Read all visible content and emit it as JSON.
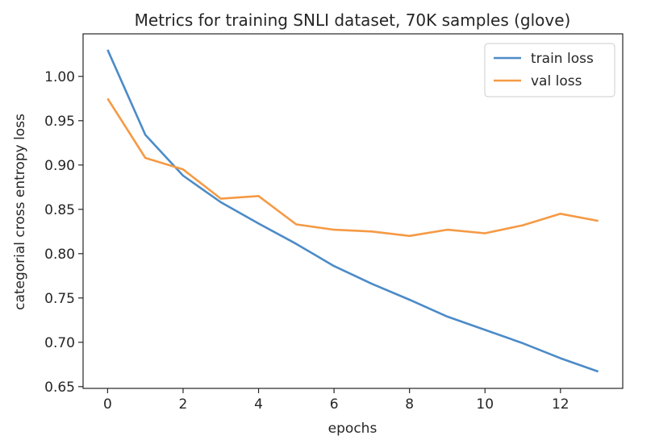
{
  "chart_data": {
    "type": "line",
    "title": "Metrics for training SNLI dataset, 70K samples (glove)",
    "xlabel": "epochs",
    "ylabel": "categorial cross entropy loss",
    "x": [
      0,
      1,
      2,
      3,
      4,
      5,
      6,
      7,
      8,
      9,
      10,
      11,
      12,
      13
    ],
    "xlim": [
      -0.65,
      13.65
    ],
    "ylim": [
      0.648,
      1.048
    ],
    "xticks": [
      0,
      2,
      4,
      6,
      8,
      10,
      12
    ],
    "yticks": [
      0.65,
      0.7,
      0.75,
      0.8,
      0.85,
      0.9,
      0.95,
      1.0
    ],
    "grid": false,
    "legend_position": "top-right",
    "series": [
      {
        "name": "train loss",
        "color": "#4c8bc8",
        "values": [
          1.03,
          0.934,
          0.888,
          0.858,
          0.834,
          0.811,
          0.786,
          0.766,
          0.748,
          0.729,
          0.714,
          0.699,
          0.682,
          0.667
        ]
      },
      {
        "name": "val loss",
        "color": "#f59a45",
        "values": [
          0.975,
          0.908,
          0.895,
          0.862,
          0.865,
          0.833,
          0.827,
          0.825,
          0.82,
          0.827,
          0.823,
          0.832,
          0.845,
          0.837
        ]
      }
    ]
  }
}
